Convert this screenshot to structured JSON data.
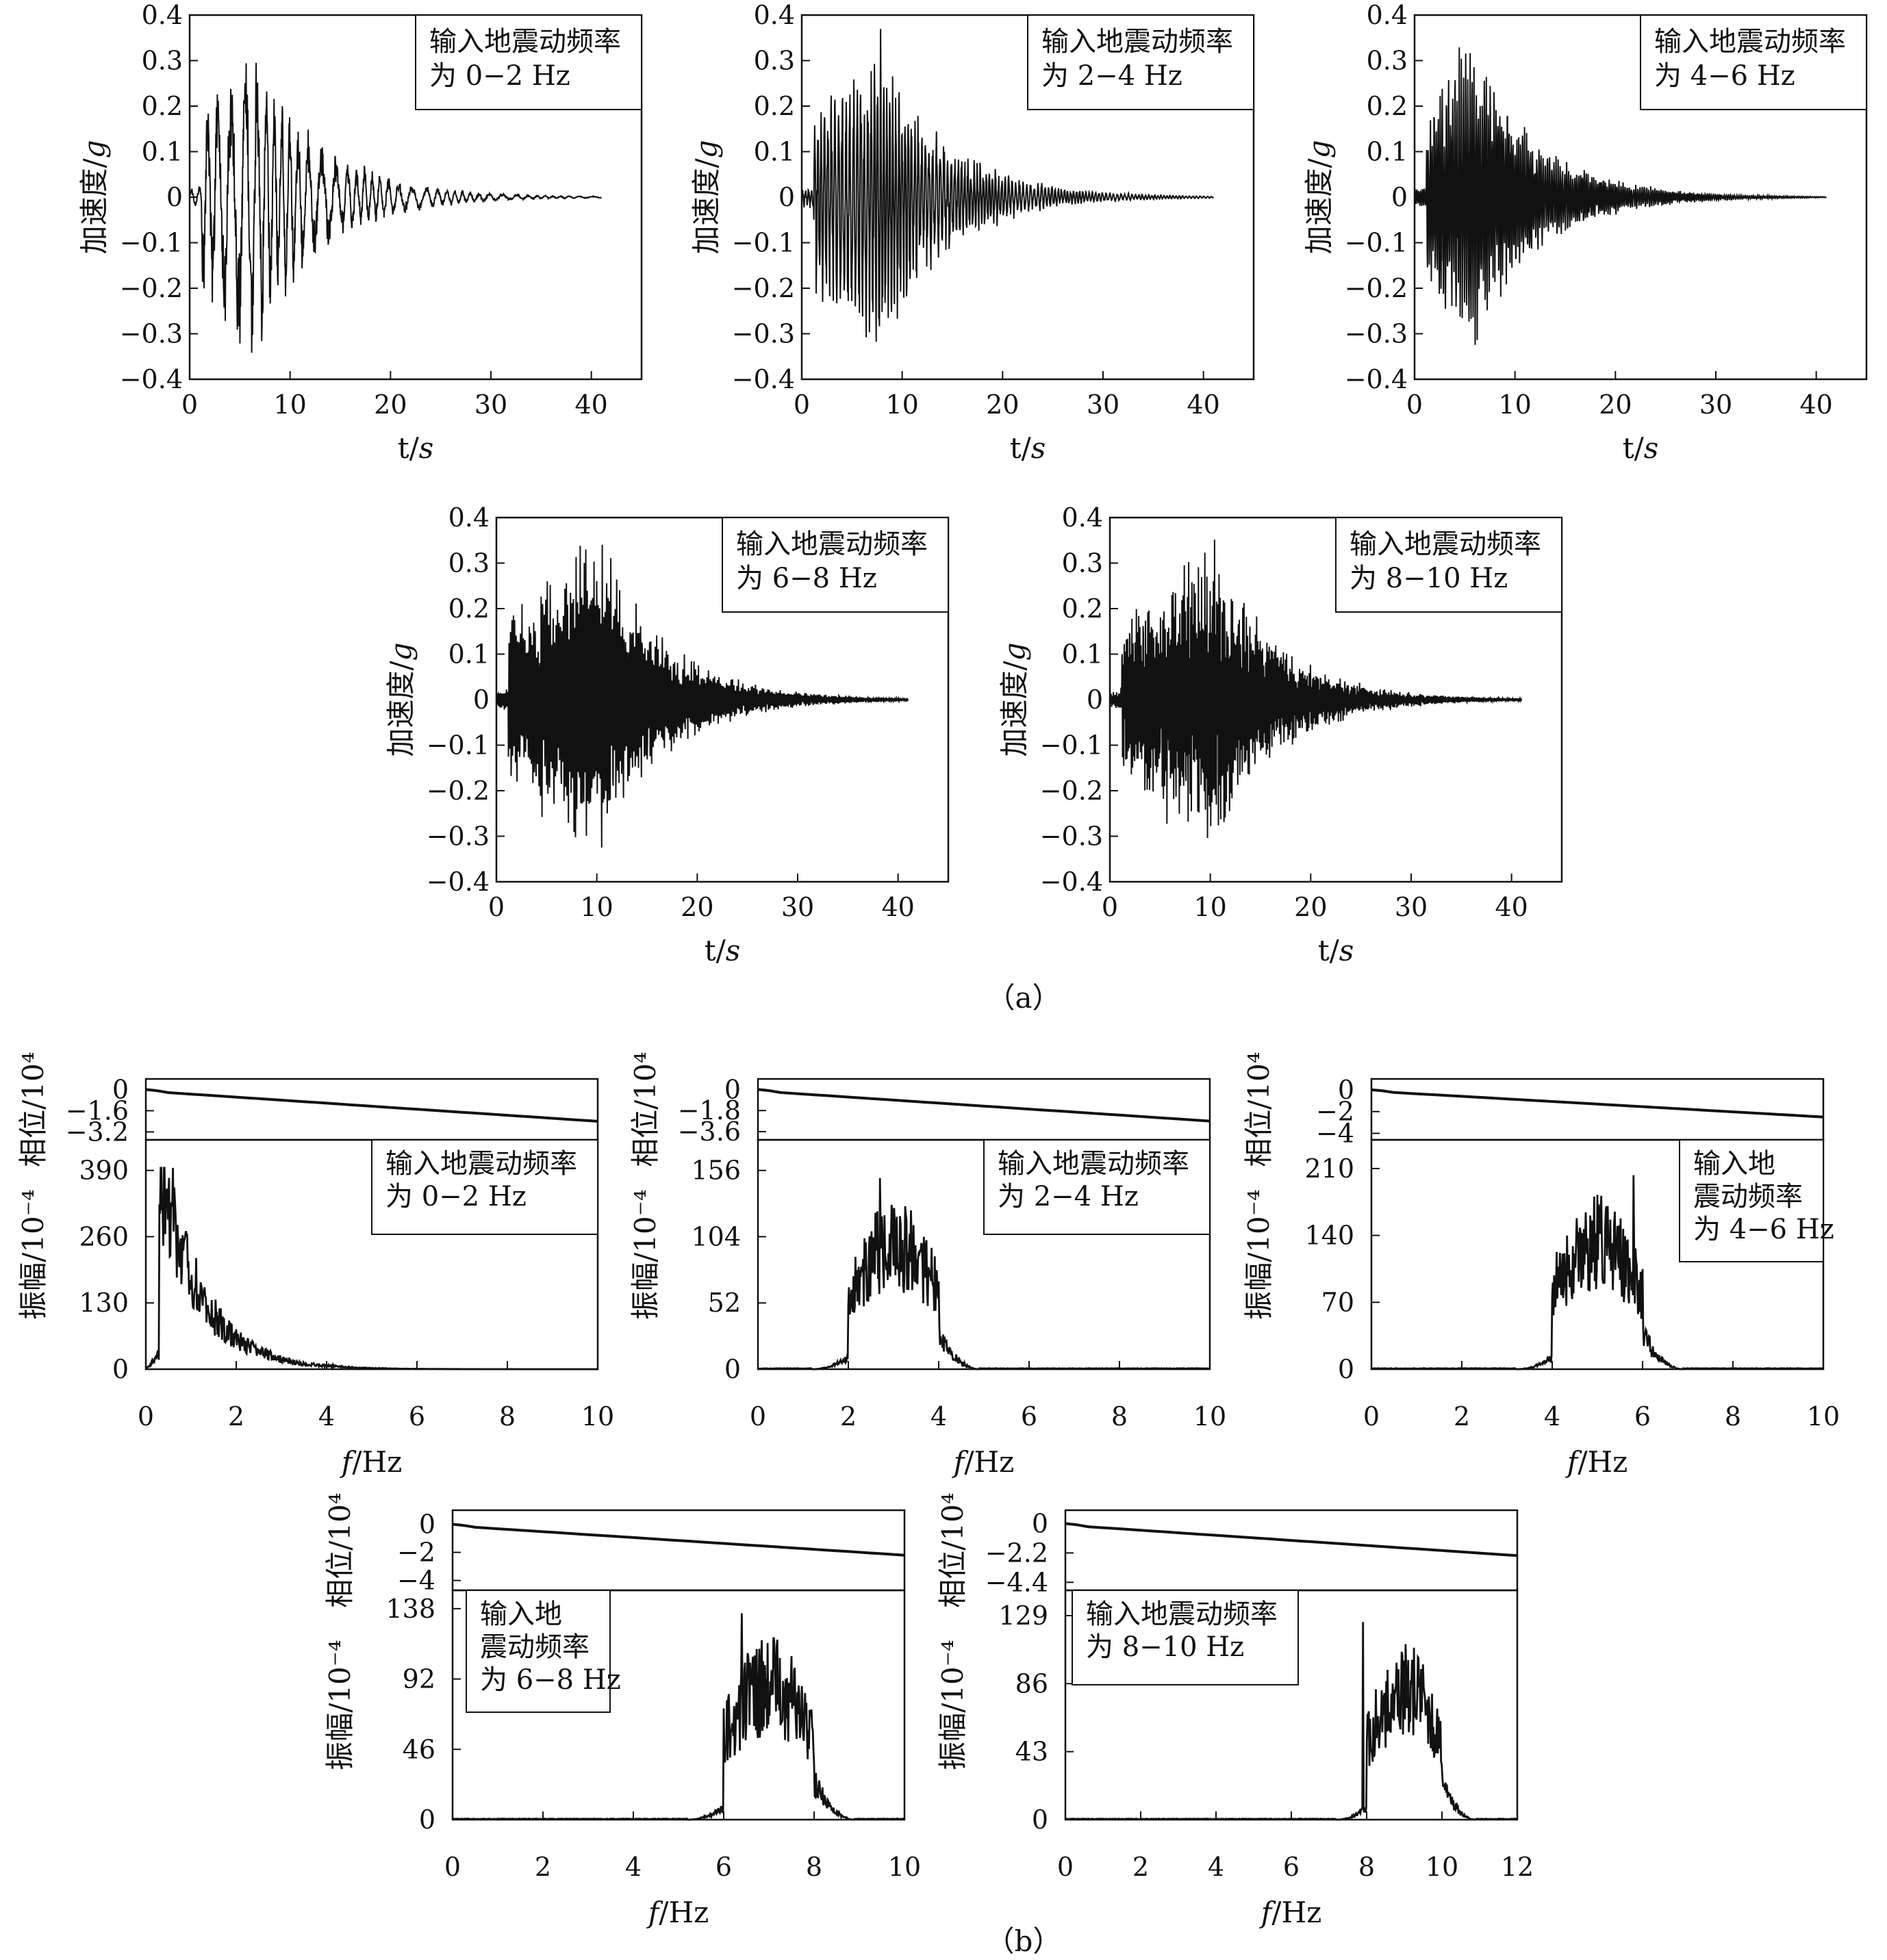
{
  "figure": {
    "caption_a": "（a）",
    "caption_b": "（b）"
  },
  "chart_data": [
    {
      "type": "line",
      "panel": "a",
      "title": "",
      "legend": [
        "输入地震动频率",
        "为 0−2 Hz"
      ],
      "xlabel": "t/s",
      "ylabel": "加速度/g",
      "xlim": [
        0,
        45
      ],
      "ylim": [
        -0.4,
        0.4
      ],
      "xticks": [
        "0",
        "10",
        "20",
        "30",
        "40"
      ],
      "yticks": [
        "0.4",
        "0.3",
        "0.2",
        "0.1",
        "0",
        "−0.1",
        "−0.2",
        "−0.3",
        "−0.4"
      ],
      "duration": 41,
      "peak_abs": 0.33,
      "peak_t": 6.0,
      "band_hz": [
        0,
        2
      ]
    },
    {
      "type": "line",
      "panel": "a",
      "title": "",
      "legend": [
        "输入地震动频率",
        "为 2−4 Hz"
      ],
      "xlabel": "t/s",
      "ylabel": "加速度/g",
      "xlim": [
        0,
        45
      ],
      "ylim": [
        -0.4,
        0.4
      ],
      "xticks": [
        "0",
        "10",
        "20",
        "30",
        "40"
      ],
      "yticks": [
        "0.4",
        "0.3",
        "0.2",
        "0.1",
        "0",
        "−0.1",
        "−0.2",
        "−0.3",
        "−0.4"
      ],
      "duration": 41,
      "peak_abs": 0.33,
      "peak_t": 7.5,
      "band_hz": [
        2,
        4
      ]
    },
    {
      "type": "line",
      "panel": "a",
      "title": "",
      "legend": [
        "输入地震动频率",
        "为 4−6 Hz"
      ],
      "xlabel": "t/s",
      "ylabel": "加速度/g",
      "xlim": [
        0,
        45
      ],
      "ylim": [
        -0.4,
        0.4
      ],
      "xticks": [
        "0",
        "10",
        "20",
        "30",
        "40"
      ],
      "yticks": [
        "0.4",
        "0.3",
        "0.2",
        "0.1",
        "0",
        "−0.1",
        "−0.2",
        "−0.3",
        "−0.4"
      ],
      "duration": 41,
      "peak_abs": 0.32,
      "peak_t": 5.5,
      "band_hz": [
        4,
        6
      ]
    },
    {
      "type": "line",
      "panel": "a",
      "title": "",
      "legend": [
        "输入地震动频率",
        "为 6−8 Hz"
      ],
      "xlabel": "t/s",
      "ylabel": "加速度/g",
      "xlim": [
        0,
        45
      ],
      "ylim": [
        -0.4,
        0.4
      ],
      "xticks": [
        "0",
        "10",
        "20",
        "30",
        "40"
      ],
      "yticks": [
        "0.4",
        "0.3",
        "0.2",
        "0.1",
        "0",
        "−0.1",
        "−0.2",
        "−0.3",
        "−0.4"
      ],
      "duration": 41,
      "peak_abs": 0.31,
      "peak_t": 10.5,
      "band_hz": [
        6,
        8
      ]
    },
    {
      "type": "line",
      "panel": "a",
      "title": "",
      "legend": [
        "输入地震动频率",
        "为 8−10 Hz"
      ],
      "xlabel": "t/s",
      "ylabel": "加速度/g",
      "xlim": [
        0,
        45
      ],
      "ylim": [
        -0.4,
        0.4
      ],
      "xticks": [
        "0",
        "10",
        "20",
        "30",
        "40"
      ],
      "yticks": [
        "0.4",
        "0.3",
        "0.2",
        "0.1",
        "0",
        "−0.1",
        "−0.2",
        "−0.3",
        "−0.4"
      ],
      "duration": 41,
      "peak_abs": 0.3,
      "peak_t": 10.5,
      "band_hz": [
        8,
        10
      ]
    },
    {
      "type": "line",
      "panel": "b",
      "title": "",
      "legend": [
        "输入地震动频率",
        "为 0−2 Hz"
      ],
      "xlabel": "f/Hz",
      "ylabel_amp": "振幅/10⁻⁴",
      "ylabel_phase": "相位/10⁴",
      "xlim": [
        0,
        10
      ],
      "xticks": [
        "0",
        "2",
        "4",
        "6",
        "8",
        "10"
      ],
      "amp_ylim": [
        0,
        450
      ],
      "amp_yticks": [
        "390",
        "260",
        "130",
        "0"
      ],
      "amp_tick_values": [
        390,
        260,
        130,
        0
      ],
      "phase_ylim": [
        -3.8,
        0.8
      ],
      "phase_yticks": [
        "0",
        "−1.6",
        "−3.2"
      ],
      "phase_tick_values": [
        0,
        -1.6,
        -3.2
      ],
      "phase_end": -2.4,
      "band_hz": [
        0,
        2
      ],
      "peak_amp": 395,
      "peak_f": 0.6
    },
    {
      "type": "line",
      "panel": "b",
      "title": "",
      "legend": [
        "输入地震动频率",
        "为 2−4 Hz"
      ],
      "xlabel": "f/Hz",
      "ylabel_amp": "振幅/10⁻⁴",
      "ylabel_phase": "相位/10⁴",
      "xlim": [
        0,
        10
      ],
      "xticks": [
        "0",
        "2",
        "4",
        "6",
        "8",
        "10"
      ],
      "amp_ylim": [
        0,
        180
      ],
      "amp_yticks": [
        "156",
        "104",
        "52",
        "0"
      ],
      "amp_tick_values": [
        156,
        104,
        52,
        0
      ],
      "phase_ylim": [
        -4.3,
        0.9
      ],
      "phase_yticks": [
        "0",
        "−1.8",
        "−3.6"
      ],
      "phase_tick_values": [
        0,
        -1.8,
        -3.6
      ],
      "phase_end": -2.7,
      "band_hz": [
        2,
        4
      ],
      "peak_amp": 150,
      "peak_f": 2.7
    },
    {
      "type": "line",
      "panel": "b",
      "title": "",
      "legend": [
        "输入地",
        "震动频率",
        "为 4−6 Hz"
      ],
      "xlabel": "f/Hz",
      "ylabel_amp": "振幅/10⁻⁴",
      "ylabel_phase": "相位/10⁴",
      "xlim": [
        0,
        10
      ],
      "xticks": [
        "0",
        "2",
        "4",
        "6",
        "8",
        "10"
      ],
      "amp_ylim": [
        0,
        240
      ],
      "amp_yticks": [
        "210",
        "140",
        "70",
        "0"
      ],
      "amp_tick_values": [
        210,
        140,
        70,
        0
      ],
      "phase_ylim": [
        -4.6,
        1.0
      ],
      "phase_yticks": [
        "0",
        "−2",
        "−4"
      ],
      "phase_tick_values": [
        0,
        -2,
        -4
      ],
      "phase_end": -2.5,
      "band_hz": [
        4,
        6
      ],
      "peak_amp": 203,
      "peak_f": 5.8
    },
    {
      "type": "line",
      "panel": "b",
      "title": "",
      "legend": [
        "输入地",
        "震动频率",
        "为 6−8 Hz"
      ],
      "xlabel": "f/Hz",
      "ylabel_amp": "振幅/10⁻⁴",
      "ylabel_phase": "相位/10⁴",
      "xlim": [
        0,
        10
      ],
      "xticks": [
        "0",
        "2",
        "4",
        "6",
        "8",
        "10"
      ],
      "amp_ylim": [
        0,
        150
      ],
      "amp_yticks": [
        "138",
        "92",
        "46",
        "0"
      ],
      "amp_tick_values": [
        138,
        92,
        46,
        0
      ],
      "phase_ylim": [
        -4.7,
        1.0
      ],
      "phase_yticks": [
        "0",
        "−2",
        "−4"
      ],
      "phase_tick_values": [
        0,
        -2,
        -4
      ],
      "phase_end": -2.2,
      "band_hz": [
        6,
        8
      ],
      "peak_amp": 135,
      "peak_f": 6.4
    },
    {
      "type": "line",
      "panel": "b",
      "title": "",
      "legend": [
        "输入地震动频率",
        "为 8−10 Hz"
      ],
      "xlabel": "f/Hz",
      "ylabel_amp": "振幅/10⁻⁴",
      "ylabel_phase": "相位/10⁴",
      "xlim": [
        0,
        12
      ],
      "xticks": [
        "0",
        "2",
        "4",
        "6",
        "8",
        "10",
        "12"
      ],
      "amp_ylim": [
        0,
        145
      ],
      "amp_yticks": [
        "129",
        "86",
        "43",
        "0"
      ],
      "amp_tick_values": [
        129,
        86,
        43,
        0
      ],
      "phase_ylim": [
        -5.0,
        1.0
      ],
      "phase_yticks": [
        "0",
        "−2.2",
        "−4.4"
      ],
      "phase_tick_values": [
        0,
        -2.2,
        -4.4
      ],
      "phase_end": -2.4,
      "band_hz": [
        8,
        10
      ],
      "peak_amp": 125,
      "peak_f": 7.9
    }
  ]
}
